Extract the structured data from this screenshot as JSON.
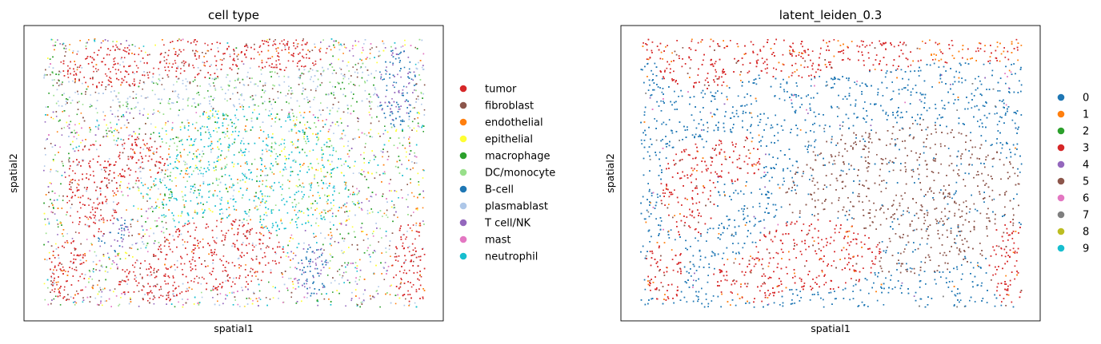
{
  "chart_data": [
    {
      "type": "scatter",
      "title": "cell type",
      "xlabel": "spatial1",
      "ylabel": "spatial2",
      "grid": false,
      "ticks": false,
      "legend_placement": "right",
      "series": [
        {
          "name": "tumor",
          "color": "#d62728"
        },
        {
          "name": "fibroblast",
          "color": "#8c564b"
        },
        {
          "name": "endothelial",
          "color": "#ff7f0e"
        },
        {
          "name": "epithelial",
          "color": "#ffff33"
        },
        {
          "name": "macrophage",
          "color": "#2ca02c"
        },
        {
          "name": "DC/monocyte",
          "color": "#98df8a"
        },
        {
          "name": "B-cell",
          "color": "#1f77b4"
        },
        {
          "name": "plasmablast",
          "color": "#aec7e8"
        },
        {
          "name": "T cell/NK",
          "color": "#9467bd"
        },
        {
          "name": "mast",
          "color": "#e377c2"
        },
        {
          "name": "neutrophil",
          "color": "#17becf"
        }
      ]
    },
    {
      "type": "scatter",
      "title": "latent_leiden_0.3",
      "xlabel": "spatial1",
      "ylabel": "spatial2",
      "grid": false,
      "ticks": false,
      "legend_placement": "right",
      "series": [
        {
          "name": "0",
          "color": "#1f77b4"
        },
        {
          "name": "1",
          "color": "#ff7f0e"
        },
        {
          "name": "2",
          "color": "#2ca02c"
        },
        {
          "name": "3",
          "color": "#d62728"
        },
        {
          "name": "4",
          "color": "#9467bd"
        },
        {
          "name": "5",
          "color": "#8c564b"
        },
        {
          "name": "6",
          "color": "#e377c2"
        },
        {
          "name": "7",
          "color": "#7f7f7f"
        },
        {
          "name": "8",
          "color": "#bcbd22"
        },
        {
          "name": "9",
          "color": "#17becf"
        }
      ]
    }
  ]
}
